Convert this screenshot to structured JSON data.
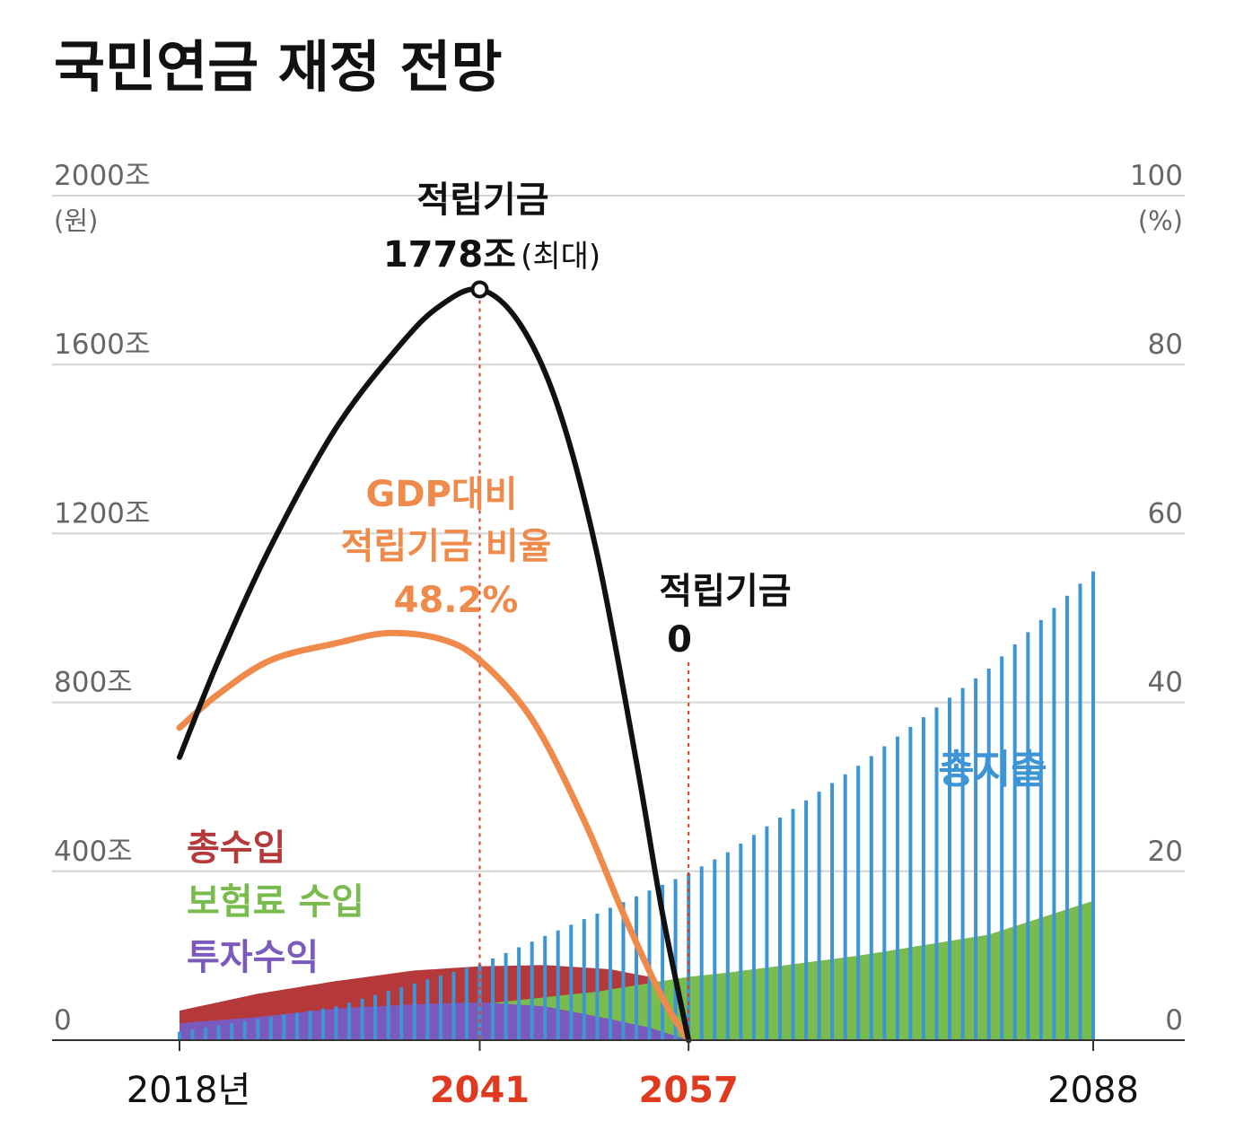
{
  "title": "국민연금 재정 전망",
  "chart_data": {
    "type": "bar+line+area",
    "title": "국민연금 재정 전망",
    "x_range": [
      2018,
      2088
    ],
    "x_ticks": [
      {
        "year": 2018,
        "label": "2018년",
        "highlight": false
      },
      {
        "year": 2041,
        "label": "2041",
        "highlight": true
      },
      {
        "year": 2057,
        "label": "2057",
        "highlight": true
      },
      {
        "year": 2088,
        "label": "2088",
        "highlight": false
      }
    ],
    "y_left": {
      "range": [
        0,
        2000
      ],
      "unit": "(원)",
      "ticks": [
        {
          "value": 0,
          "label": "0"
        },
        {
          "value": 400,
          "label": "400조"
        },
        {
          "value": 800,
          "label": "800조"
        },
        {
          "value": 1200,
          "label": "1200조"
        },
        {
          "value": 1600,
          "label": "1600조"
        },
        {
          "value": 2000,
          "label": "2000조"
        }
      ]
    },
    "y_right": {
      "range": [
        0,
        100
      ],
      "unit": "(%)",
      "ticks": [
        {
          "value": 0,
          "label": "0"
        },
        {
          "value": 20,
          "label": "20"
        },
        {
          "value": 40,
          "label": "40"
        },
        {
          "value": 60,
          "label": "60"
        },
        {
          "value": 80,
          "label": "80"
        },
        {
          "value": 100,
          "label": "100"
        }
      ]
    },
    "series": {
      "fund": {
        "name": "적립기금",
        "color": "#111111",
        "x": [
          2018,
          2021,
          2025,
          2030,
          2035,
          2038,
          2041,
          2044,
          2047,
          2050,
          2053,
          2055,
          2057
        ],
        "values": [
          670,
          900,
          1170,
          1450,
          1650,
          1740,
          1778,
          1700,
          1500,
          1150,
          660,
          300,
          0
        ]
      },
      "gdp_ratio": {
        "name": "GDP대비 적립기금 비율",
        "color": "#f08a4b",
        "x": [
          2018,
          2021,
          2025,
          2030,
          2034,
          2038,
          2041,
          2045,
          2049,
          2052,
          2055,
          2057
        ],
        "values": [
          37,
          41,
          45,
          47,
          48.2,
          47.5,
          45,
          38,
          26,
          15,
          5,
          0
        ]
      },
      "expenditure": {
        "name": "총지출",
        "color": "#3d95d6",
        "x_start": 2018,
        "x_end": 2088,
        "x": [
          2018,
          2030,
          2041,
          2050,
          2057,
          2060,
          2070,
          2080,
          2088
        ],
        "values": [
          20,
          80,
          180,
          300,
          395,
          445,
          650,
          880,
          1110
        ]
      },
      "total_income": {
        "name": "총수입",
        "color": "#b5383b",
        "x": [
          2018,
          2024,
          2030,
          2036,
          2041,
          2046,
          2051,
          2054,
          2057
        ],
        "values": [
          70,
          110,
          140,
          165,
          175,
          178,
          168,
          150,
          0
        ]
      },
      "premium_income": {
        "name": "보험료 수입",
        "color": "#79bb4d",
        "x": [
          2018,
          2030,
          2041,
          2050,
          2057,
          2060,
          2070,
          2080,
          2088
        ],
        "values": [
          30,
          55,
          85,
          115,
          150,
          160,
          200,
          250,
          330
        ]
      },
      "investment_income": {
        "name": "투자수익",
        "color": "#7a5bbd",
        "x": [
          2018,
          2024,
          2030,
          2036,
          2041,
          2046,
          2051,
          2054,
          2057
        ],
        "values": [
          40,
          55,
          75,
          85,
          90,
          80,
          50,
          30,
          0
        ]
      }
    },
    "annotations": {
      "peak": {
        "year": 2041,
        "value": 1778,
        "line1": "적립기금",
        "line2_main": "1778조",
        "line2_sub": "(최대)"
      },
      "depletion": {
        "year": 2057,
        "line1": "적립기금",
        "line2": "0"
      },
      "ratio": {
        "line1": "GDP대비",
        "line2": "적립기금 비율",
        "line3": "48.2%"
      }
    },
    "legend": [
      {
        "label": "총수입",
        "color": "#b5383b"
      },
      {
        "label": "보험료 수입",
        "color": "#79bb4d"
      },
      {
        "label": "투자수익",
        "color": "#7a5bbd"
      }
    ],
    "expenditure_label": "총지출"
  }
}
